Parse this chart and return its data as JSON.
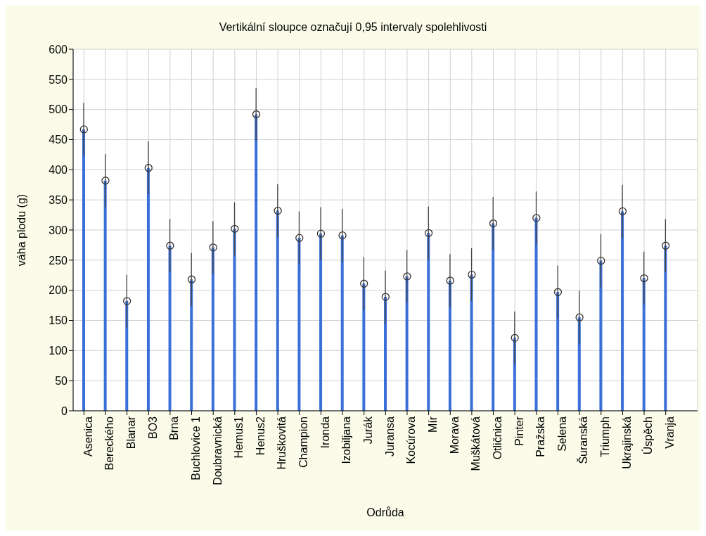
{
  "chart_data": {
    "type": "bar",
    "title": "Vertikální sloupce označují 0,95 intervaly spolehlivosti",
    "xlabel": "Odrůda",
    "ylabel": "váha plodu (g)",
    "categories": [
      "Asenica",
      "Bereckého",
      "Blanar",
      "BO3",
      "Brna",
      "Buchlovice 1",
      "Doubravnická",
      "Hemus1",
      "Henus2",
      "Hruškovitá",
      "Champion",
      "Ironda",
      "Izobiljana",
      "Jurák",
      "Juransa",
      "Kocúrova",
      "Mír",
      "Morava",
      "Muškátová",
      "Otličnica",
      "Pinter",
      "Pražska",
      "Selena",
      "Šuranská",
      "Triumph",
      "Ukrajinská",
      "Úspěch",
      "Vranja"
    ],
    "series": [
      {
        "type": "bar",
        "color": "#3a6fd8",
        "values": [
          467,
          382,
          182,
          403,
          274,
          218,
          271,
          302,
          492,
          332,
          287,
          294,
          291,
          211,
          189,
          223,
          295,
          216,
          226,
          311,
          121,
          320,
          197,
          155,
          249,
          331,
          220,
          274
        ],
        "errors": [
          44,
          44,
          44,
          44,
          44,
          44,
          44,
          44,
          44,
          44,
          44,
          44,
          44,
          44,
          44,
          44,
          44,
          44,
          44,
          44,
          44,
          44,
          44,
          44,
          44,
          44,
          44,
          44
        ]
      },
      {
        "type": "scatter",
        "color": "#333333",
        "marker": "circle",
        "x": [
          "Asenica",
          "Bereckého",
          "Blanar",
          "BO3",
          "Brna",
          "Buchlovice 1",
          "Doubravnická",
          "Hemus1",
          "Henus2",
          "Hruškovitá",
          "Champion",
          "Ironda",
          "Izobiljana",
          "Jurák",
          "Juransa",
          "Kocúrova",
          "Mír",
          "Morava",
          "Muškátová",
          "Otličnica",
          "Pinter",
          "Pražska",
          "Selena",
          "Šuranská",
          "Triumph",
          "Ukrajinská",
          "Úspěch",
          "Vranja"
        ],
        "values": [
          467,
          382,
          182,
          403,
          274,
          218,
          271,
          302,
          492,
          332,
          287,
          294,
          291,
          211,
          189,
          223,
          295,
          216,
          226,
          311,
          121,
          320,
          197,
          155,
          249,
          331,
          220,
          274
        ]
      }
    ],
    "ylim": [
      0,
      600
    ],
    "yticks": [
      0,
      50,
      100,
      150,
      200,
      250,
      300,
      350,
      400,
      450,
      500,
      550,
      600
    ],
    "grid": true
  }
}
